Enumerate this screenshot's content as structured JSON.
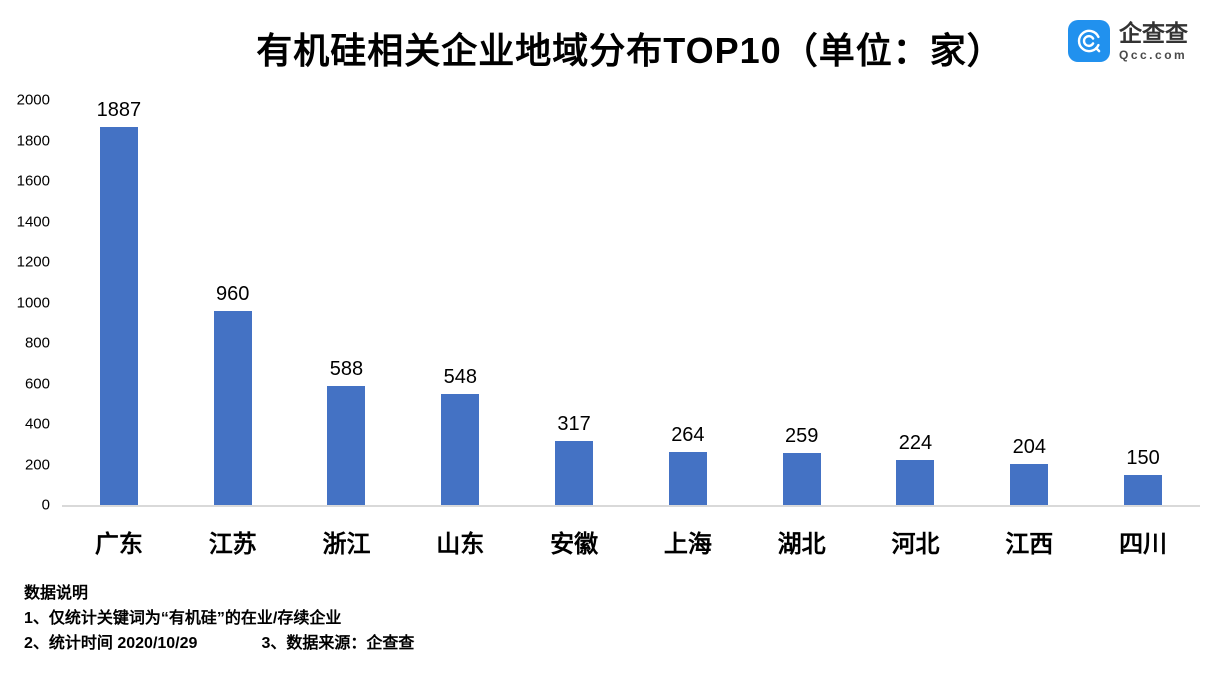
{
  "title": "有机硅相关企业地域分布TOP10（单位：家）",
  "logo": {
    "name": "企查查",
    "domain": "Qcc.com",
    "icon": "qcc-magnifier-icon",
    "icon_color": "#2191EE"
  },
  "chart_data": {
    "type": "bar",
    "title": "有机硅相关企业地域分布TOP10（单位：家）",
    "categories": [
      "广东",
      "江苏",
      "浙江",
      "山东",
      "安徽",
      "上海",
      "湖北",
      "河北",
      "江西",
      "四川"
    ],
    "values": [
      1887,
      960,
      588,
      548,
      317,
      264,
      259,
      224,
      204,
      150
    ],
    "xlabel": "",
    "ylabel": "",
    "ylim": [
      0,
      2000
    ],
    "ytick_step": 200,
    "bar_color": "#4472C4",
    "axis_line_color": "#d9d9d9",
    "grid": false,
    "legend": false,
    "value_labels": true
  },
  "footnotes": {
    "heading": "数据说明",
    "line1": "1、仅统计关键词为“有机硅”的在业/存续企业",
    "line2": "2、统计时间  2020/10/29",
    "line3": "3、数据来源：企查查"
  }
}
